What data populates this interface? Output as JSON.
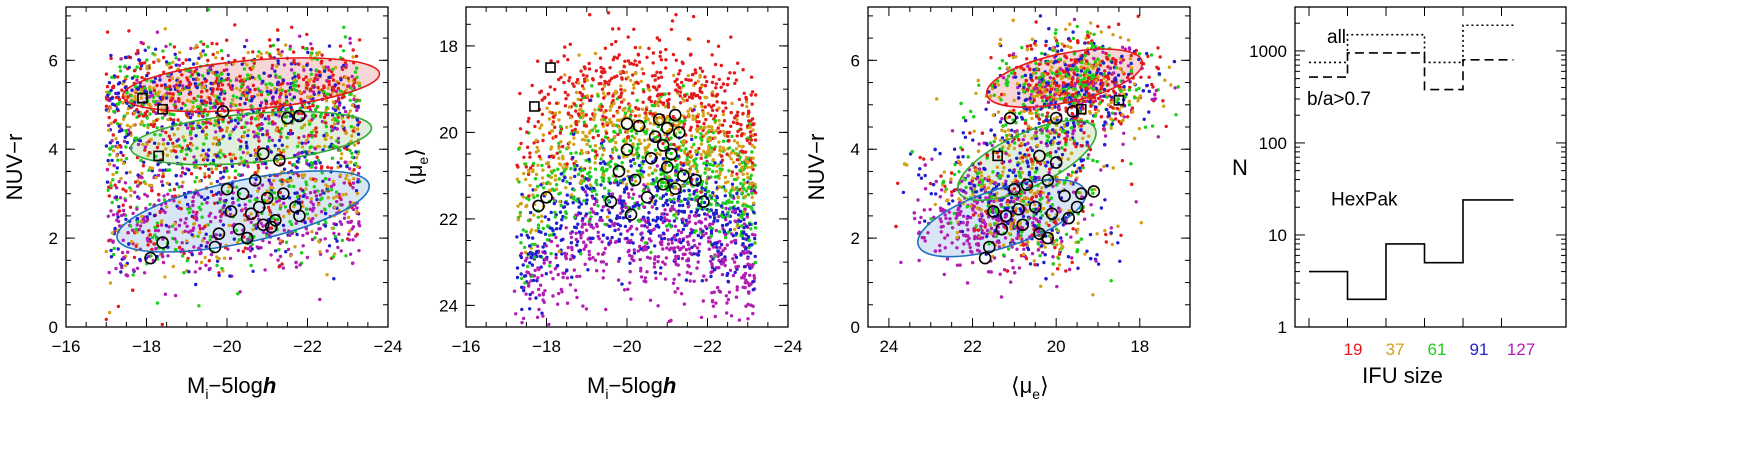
{
  "chart_data": [
    {
      "type": "scatter",
      "panel": "NUV-r vs absolute magnitude",
      "xlabel_main": "M",
      "xlabel_sub": "i",
      "xlabel_rest": "−5log",
      "xlabel_italic": "h",
      "ylabel": "NUV−r",
      "xlim": [
        -16,
        -24
      ],
      "ylim": [
        0,
        7.2
      ],
      "xticks": [
        -16,
        -18,
        -20,
        -22,
        -24
      ],
      "yticks": [
        0,
        2,
        4,
        6
      ],
      "cloud": {
        "x_range": [
          -17,
          -23.4
        ],
        "y_range": [
          0.5,
          7.2
        ]
      },
      "ellipses": [
        {
          "color": "#e41a1c",
          "fill": "#f6d6d6",
          "cx": -20.6,
          "cy": 5.45,
          "rx": 3.2,
          "ry": 0.55,
          "angle_deg": 5
        },
        {
          "color": "#33aa33",
          "fill": "#dfeedd",
          "cx": -20.6,
          "cy": 4.25,
          "rx": 3.0,
          "ry": 0.55,
          "angle_deg": 5
        },
        {
          "color": "#1f6fbf",
          "fill": "#d7e5f4",
          "cx": -20.4,
          "cy": 2.6,
          "rx": 3.2,
          "ry": 0.7,
          "angle_deg": 12
        }
      ],
      "squares": [
        {
          "x": -17.9,
          "y": 5.15
        },
        {
          "x": -18.4,
          "y": 4.9
        },
        {
          "x": -18.3,
          "y": 3.85
        }
      ],
      "circles": [
        {
          "x": -19.9,
          "y": 4.85
        },
        {
          "x": -21.5,
          "y": 4.7
        },
        {
          "x": -21.8,
          "y": 4.75
        },
        {
          "x": -20.9,
          "y": 3.9
        },
        {
          "x": -21.3,
          "y": 3.75
        },
        {
          "x": -20.0,
          "y": 3.1
        },
        {
          "x": -20.4,
          "y": 3.0
        },
        {
          "x": -20.7,
          "y": 3.3
        },
        {
          "x": -21.0,
          "y": 2.9
        },
        {
          "x": -21.4,
          "y": 3.0
        },
        {
          "x": -21.7,
          "y": 2.7
        },
        {
          "x": -20.1,
          "y": 2.6
        },
        {
          "x": -20.6,
          "y": 2.55
        },
        {
          "x": -20.8,
          "y": 2.7
        },
        {
          "x": -21.2,
          "y": 2.4
        },
        {
          "x": -21.8,
          "y": 2.5
        },
        {
          "x": -20.3,
          "y": 2.2
        },
        {
          "x": -19.8,
          "y": 2.1
        },
        {
          "x": -20.9,
          "y": 2.3
        },
        {
          "x": -21.1,
          "y": 2.25
        },
        {
          "x": -18.4,
          "y": 1.9
        },
        {
          "x": -18.1,
          "y": 1.55
        },
        {
          "x": -19.7,
          "y": 1.8
        },
        {
          "x": -20.5,
          "y": 2.0
        }
      ]
    },
    {
      "type": "scatter",
      "panel": "surface brightness vs absolute magnitude",
      "xlabel_main": "M",
      "xlabel_sub": "i",
      "xlabel_rest": "−5log",
      "xlabel_italic": "h",
      "ylabel_main": "⟨μ",
      "ylabel_sub": "e",
      "ylabel_close": "⟩",
      "xlim": [
        -16,
        -24
      ],
      "ylim": [
        24.5,
        17.1
      ],
      "xticks": [
        -16,
        -18,
        -20,
        -22,
        -24
      ],
      "yticks": [
        18,
        20,
        22,
        24
      ],
      "squares": [
        {
          "x": -18.1,
          "y": 18.5
        },
        {
          "x": -17.7,
          "y": 19.4
        }
      ],
      "circles": [
        {
          "x": -18.0,
          "y": 21.5
        },
        {
          "x": -17.8,
          "y": 21.7
        },
        {
          "x": -20.0,
          "y": 19.8
        },
        {
          "x": -20.3,
          "y": 19.85
        },
        {
          "x": -20.8,
          "y": 19.7
        },
        {
          "x": -21.2,
          "y": 19.6
        },
        {
          "x": -21.0,
          "y": 19.9
        },
        {
          "x": -20.7,
          "y": 20.1
        },
        {
          "x": -21.3,
          "y": 20.0
        },
        {
          "x": -20.9,
          "y": 20.3
        },
        {
          "x": -21.1,
          "y": 20.5
        },
        {
          "x": -20.6,
          "y": 20.6
        },
        {
          "x": -20.0,
          "y": 20.4
        },
        {
          "x": -19.8,
          "y": 20.9
        },
        {
          "x": -20.2,
          "y": 21.1
        },
        {
          "x": -21.0,
          "y": 20.8
        },
        {
          "x": -21.4,
          "y": 21.0
        },
        {
          "x": -21.7,
          "y": 21.1
        },
        {
          "x": -21.9,
          "y": 21.6
        },
        {
          "x": -20.9,
          "y": 21.2
        },
        {
          "x": -20.5,
          "y": 21.5
        },
        {
          "x": -20.1,
          "y": 21.9
        },
        {
          "x": -19.6,
          "y": 21.6
        },
        {
          "x": -21.2,
          "y": 21.3
        }
      ]
    },
    {
      "type": "scatter",
      "panel": "NUV-r vs surface brightness",
      "xlabel_main": "⟨μ",
      "xlabel_sub": "e",
      "xlabel_close": "⟩",
      "ylabel": "NUV−r",
      "xlim": [
        24.5,
        16.8
      ],
      "ylim": [
        0,
        7.2
      ],
      "xticks": [
        24,
        22,
        20,
        18
      ],
      "yticks": [
        0,
        2,
        4,
        6
      ],
      "ellipses": [
        {
          "color": "#e41a1c",
          "fill": "#f6d6d6",
          "cx": 19.8,
          "cy": 5.6,
          "rx": 1.9,
          "ry": 0.55,
          "angle_deg": 12
        },
        {
          "color": "#33aa33",
          "fill": "#dfeedd",
          "cx": 20.7,
          "cy": 3.75,
          "rx": 1.8,
          "ry": 0.6,
          "angle_deg": 25
        },
        {
          "color": "#1f6fbf",
          "fill": "#d7e5f4",
          "cx": 21.3,
          "cy": 2.45,
          "rx": 2.1,
          "ry": 0.65,
          "angle_deg": 18
        }
      ],
      "squares": [
        {
          "x": 18.5,
          "y": 5.1
        },
        {
          "x": 19.4,
          "y": 4.9
        },
        {
          "x": 21.4,
          "y": 3.85
        }
      ],
      "circles": [
        {
          "x": 21.1,
          "y": 4.7
        },
        {
          "x": 20.0,
          "y": 4.7
        },
        {
          "x": 19.6,
          "y": 4.85
        },
        {
          "x": 20.4,
          "y": 3.85
        },
        {
          "x": 20.0,
          "y": 3.7
        },
        {
          "x": 21.0,
          "y": 3.1
        },
        {
          "x": 20.7,
          "y": 3.2
        },
        {
          "x": 20.2,
          "y": 3.3
        },
        {
          "x": 19.8,
          "y": 2.95
        },
        {
          "x": 19.4,
          "y": 3.0
        },
        {
          "x": 19.1,
          "y": 3.05
        },
        {
          "x": 21.5,
          "y": 2.6
        },
        {
          "x": 21.2,
          "y": 2.5
        },
        {
          "x": 20.9,
          "y": 2.65
        },
        {
          "x": 20.5,
          "y": 2.7
        },
        {
          "x": 20.1,
          "y": 2.55
        },
        {
          "x": 19.7,
          "y": 2.45
        },
        {
          "x": 19.5,
          "y": 2.7
        },
        {
          "x": 21.3,
          "y": 2.2
        },
        {
          "x": 20.8,
          "y": 2.3
        },
        {
          "x": 20.4,
          "y": 2.1
        },
        {
          "x": 21.6,
          "y": 1.8
        },
        {
          "x": 21.7,
          "y": 1.55
        },
        {
          "x": 20.2,
          "y": 2.0
        }
      ]
    },
    {
      "type": "histogram",
      "panel": "IFU size distribution",
      "ylabel": "N",
      "xlabel": "IFU size",
      "yscale": "log",
      "ylim": [
        1,
        3000
      ],
      "yticks": [
        1,
        10,
        100,
        1000
      ],
      "categories": [
        "19",
        "37",
        "61",
        "91",
        "127"
      ],
      "category_colors": [
        "#e41a1c",
        "#d4a017",
        "#1ccf1c",
        "#1f1fd0",
        "#b31db3"
      ],
      "series": [
        {
          "name": "all",
          "style": "dotted",
          "values": [
            750,
            1500,
            1500,
            750,
            1900
          ]
        },
        {
          "name": "b/a>0.7",
          "style": "dashed",
          "values": [
            520,
            950,
            950,
            380,
            800
          ]
        },
        {
          "name": "HexPak",
          "style": "solid",
          "values": [
            4,
            2,
            8,
            5,
            24
          ]
        }
      ],
      "labels": {
        "all": "all",
        "ba": "b/a>0.7",
        "hexpak": "HexPak"
      }
    }
  ],
  "legend_colors": {
    "ifu_19": "#e41a1c",
    "ifu_37": "#d4a017",
    "ifu_61": "#1ccf1c",
    "ifu_91": "#1f1fd0",
    "ifu_127": "#b31db3"
  }
}
